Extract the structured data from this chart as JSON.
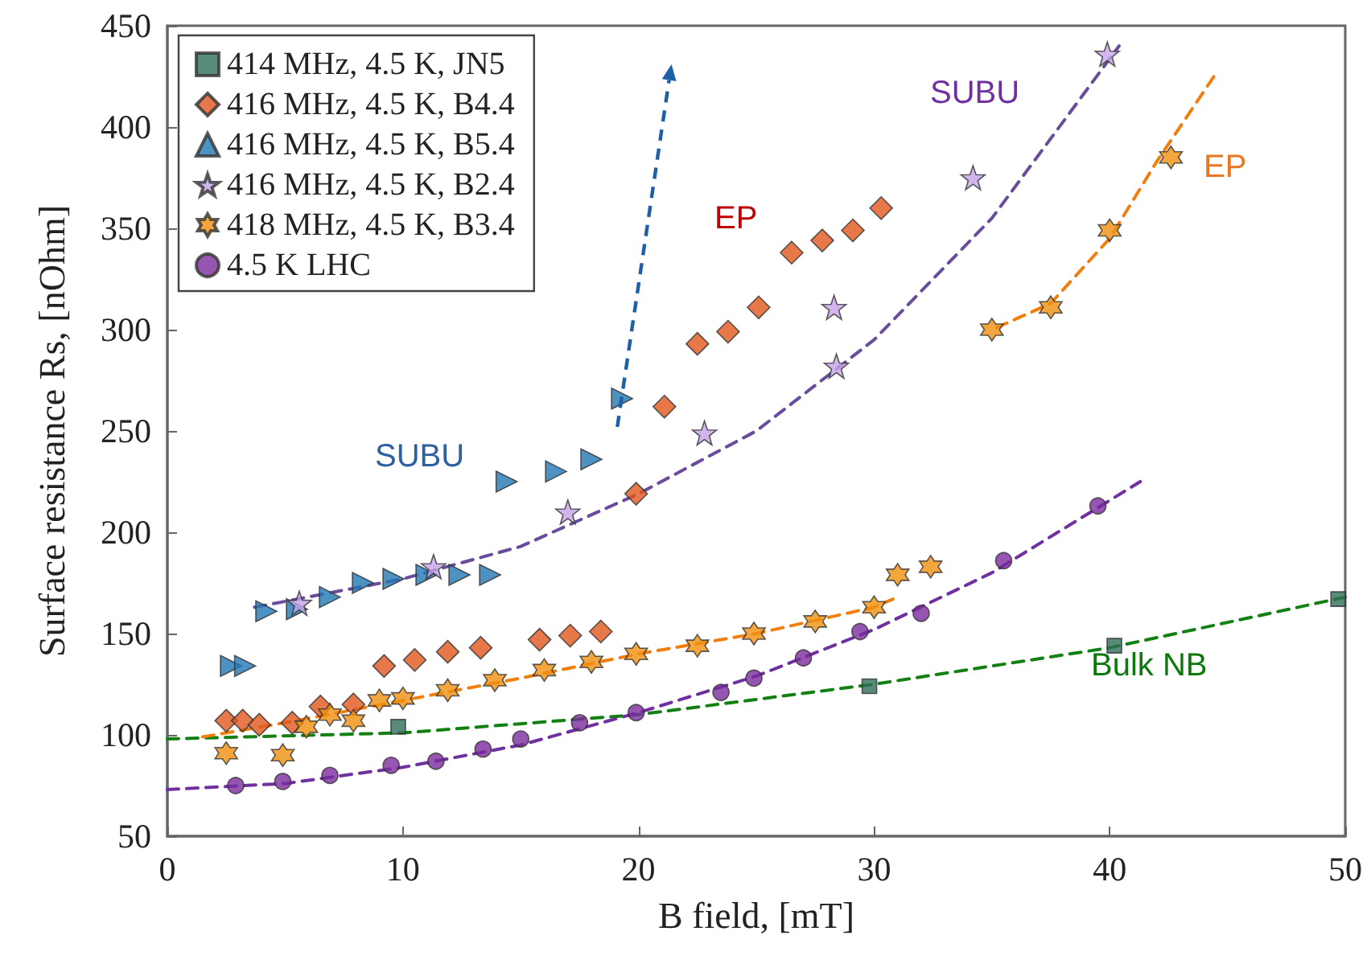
{
  "chart_data": {
    "type": "scatter",
    "xlabel": "B field, [mT]",
    "ylabel": "Surface resistance Rs, [nOhm]",
    "xlim": [
      0,
      50
    ],
    "xticks": [
      0,
      10,
      20,
      30,
      40,
      50
    ],
    "ylim": [
      50,
      450
    ],
    "yticks": [
      50,
      100,
      150,
      200,
      250,
      300,
      350,
      400,
      450
    ],
    "grid": false,
    "legend": "top left",
    "series": [
      {
        "name": "414 MHz, 4.5 K, JN5",
        "color": "#2e6e57",
        "marker": "square",
        "x": [
          9.8,
          29.8,
          40.2,
          49.7
        ],
        "values": [
          104,
          124,
          144,
          167
        ]
      },
      {
        "name": "416 MHz, 4.5 K, B4.4",
        "color": "#e0561c",
        "marker": "diamond",
        "x": [
          2.5,
          3.2,
          3.9,
          5.3,
          6.5,
          7.9,
          9.2,
          10.5,
          11.9,
          13.3,
          15.8,
          17.1,
          18.4,
          19.9,
          21.1,
          22.5,
          23.8,
          25.1,
          26.5,
          27.8,
          29.1,
          30.3
        ],
        "values": [
          107,
          107,
          105,
          106,
          114,
          115,
          134,
          137,
          141,
          143,
          147,
          149,
          151,
          219,
          262,
          293,
          299,
          311,
          338,
          344,
          349,
          360
        ]
      },
      {
        "name": "416 MHz, 4.5 K, B5.4",
        "color": "#1f77b4",
        "marker": "triangle-right",
        "x": [
          2.7,
          3.3,
          4.2,
          5.5,
          6.9,
          8.3,
          9.6,
          11.0,
          12.4,
          13.7,
          14.4,
          16.5,
          18.0,
          19.3
        ],
        "values": [
          134,
          134,
          161,
          162,
          168,
          175,
          177,
          179,
          179,
          179,
          225,
          230,
          236,
          266
        ]
      },
      {
        "name": "416 MHz, 4.5 K, B2.4",
        "color": "#c8a2e8",
        "marker": "star",
        "x": [
          5.6,
          11.3,
          17.0,
          22.8,
          28.4,
          28.3,
          34.2,
          39.9
        ],
        "values": [
          165,
          183,
          210,
          249,
          282,
          311,
          375,
          436
        ]
      },
      {
        "name": "418 MHz, 4.5 K, B3.4",
        "color": "#f0900c",
        "marker": "cross",
        "x": [
          2.5,
          4.9,
          5.9,
          6.9,
          7.9,
          9.0,
          10.0,
          11.9,
          13.9,
          16.0,
          18.0,
          19.9,
          22.5,
          24.9,
          27.5,
          30.0,
          31.0,
          32.4,
          35.0,
          37.5,
          40.0,
          42.6
        ],
        "values": [
          91,
          90,
          104,
          110,
          107,
          117,
          118,
          122,
          127,
          132,
          136,
          140,
          144,
          150,
          156,
          163,
          179,
          183,
          300,
          311,
          349,
          385
        ]
      },
      {
        "name": "4.5 K LHC",
        "color": "#7b2b9e",
        "marker": "circle",
        "x": [
          2.9,
          4.9,
          6.9,
          9.5,
          11.4,
          13.4,
          15.0,
          17.5,
          19.9,
          23.5,
          24.9,
          27.0,
          29.4,
          32.0,
          35.5,
          39.5
        ],
        "values": [
          75,
          77,
          80,
          85,
          87,
          93,
          98,
          106,
          111,
          121,
          128,
          138,
          151,
          160,
          186,
          213
        ]
      },
      {
        "type": "line",
        "color": "#138013",
        "marker": "none",
        "line_style": "dashed",
        "x": [
          0,
          10,
          20,
          30,
          40,
          50
        ],
        "values": [
          98,
          101,
          110,
          125,
          143,
          168
        ]
      },
      {
        "type": "line",
        "color": "#7030a0",
        "marker": "none",
        "line_style": "dashed",
        "x": [
          0,
          5,
          10,
          15,
          20,
          25,
          30,
          35,
          41.3
        ],
        "values": [
          73,
          76,
          84,
          95,
          111,
          129,
          152,
          180,
          225
        ]
      },
      {
        "type": "line",
        "color": "#f07f10",
        "marker": "none",
        "line_style": "dashed",
        "x": [
          1.5,
          5,
          10,
          15,
          20,
          25,
          30,
          30.8
        ],
        "values": [
          99,
          106,
          117,
          128,
          140,
          150,
          163,
          167
        ]
      },
      {
        "type": "line",
        "color": "#f07f10",
        "marker": "none",
        "line_style": "dashed",
        "x": [
          35.2,
          37.5,
          40,
          42,
          44.6
        ],
        "values": [
          301,
          313,
          345,
          383,
          428
        ]
      },
      {
        "type": "line",
        "color": "#6a4c9c",
        "marker": "none",
        "line_style": "dashed",
        "x": [
          3.7,
          10,
          15,
          20,
          25,
          30,
          35,
          40.4
        ],
        "values": [
          163,
          177,
          193,
          219,
          250,
          295,
          355,
          440
        ]
      }
    ],
    "annotations": [
      "SUBU",
      "EP",
      "SUBU",
      "EP",
      "Bulk NB"
    ]
  }
}
